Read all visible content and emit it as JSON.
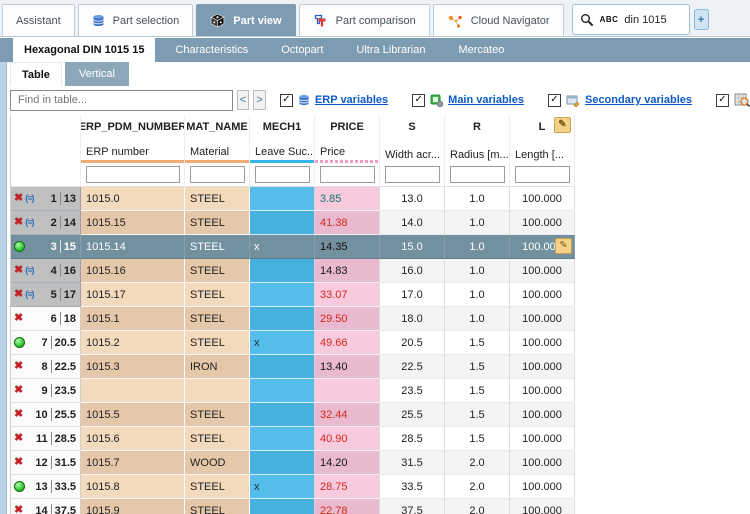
{
  "colors": {
    "accent_steel_blue": "#7d9cb2",
    "selected_row": "#73909f",
    "erp_column_tan": "#f3dabd",
    "mech_column_blue": "#54bde9",
    "price_column_pink": "#f8cade",
    "price_red": "#d9281d",
    "price_teal": "#0c756d",
    "link_blue": "#0b5ac6"
  },
  "icons": {
    "red_x": "✖",
    "request_glyph": "(≡)",
    "pencil": "✎",
    "plus": "+",
    "check": "✓",
    "prev": "<",
    "next": ">"
  },
  "top_tabs": [
    {
      "label": "Assistant",
      "active": false
    },
    {
      "label": "Part selection",
      "active": false
    },
    {
      "label": "Part view",
      "active": true
    },
    {
      "label": "Part comparison",
      "active": false
    },
    {
      "label": "Cloud Navigator",
      "active": false
    }
  ],
  "search": {
    "abc_label": "ABC",
    "query": "din 1015"
  },
  "doc_tabs": [
    {
      "label": "Hexagonal DIN 1015 15",
      "active": true
    },
    {
      "label": "Characteristics",
      "active": false
    },
    {
      "label": "Octopart",
      "active": false
    },
    {
      "label": "Ultra Librarian",
      "active": false
    },
    {
      "label": "Mercateo",
      "active": false
    }
  ],
  "view_tabs": [
    {
      "label": "Table",
      "active": true
    },
    {
      "label": "Vertical",
      "active": false
    }
  ],
  "find": {
    "placeholder": "Find in table..."
  },
  "toggles": [
    {
      "label": "ERP variables",
      "checked": true,
      "icon": "database-icon"
    },
    {
      "label": "Main variables",
      "checked": true,
      "icon": "main-variables-icon"
    },
    {
      "label": "Secondary variables",
      "checked": true,
      "icon": "secondary-variables-icon"
    },
    {
      "label": "",
      "checked": true,
      "icon": "preview-icon"
    }
  ],
  "table": {
    "columns": [
      {
        "id": "rowhdr",
        "label": "",
        "sublabel": "",
        "underline": "none"
      },
      {
        "id": "erp",
        "label": "ERP_PDM_NUMBER",
        "sublabel": "ERP number",
        "underline": "orange"
      },
      {
        "id": "mat",
        "label": "MAT_NAME",
        "sublabel": "Material",
        "underline": "orange"
      },
      {
        "id": "mech",
        "label": "MECH1",
        "sublabel": "Leave Suc...",
        "underline": "blue"
      },
      {
        "id": "price",
        "label": "PRICE",
        "sublabel": "Price",
        "underline": "pink"
      },
      {
        "id": "s",
        "label": "S",
        "sublabel": "Width acr...",
        "underline": "none"
      },
      {
        "id": "r",
        "label": "R",
        "sublabel": "Radius [m...",
        "underline": "none"
      },
      {
        "id": "l",
        "label": "L",
        "sublabel": "Length [...",
        "underline": "none",
        "editable": true
      }
    ],
    "rows": [
      {
        "num": "1",
        "key": "13",
        "state": "blocked-request",
        "erp": "1015.0",
        "mat": "STEEL",
        "mech": "",
        "price": "3.85",
        "price_style": "teal",
        "s": "13.0",
        "r": "1.0",
        "l": "100.000",
        "selected": false,
        "editable": false
      },
      {
        "num": "2",
        "key": "14",
        "state": "blocked-request",
        "erp": "1015.15",
        "mat": "STEEL",
        "mech": "",
        "price": "41.38",
        "price_style": "red",
        "s": "14.0",
        "r": "1.0",
        "l": "100.000",
        "selected": false,
        "editable": false
      },
      {
        "num": "3",
        "key": "15",
        "state": "active",
        "erp": "1015.14",
        "mat": "STEEL",
        "mech": "x",
        "price": "14.35",
        "price_style": "dark",
        "s": "15.0",
        "r": "1.0",
        "l": "100.000",
        "selected": true,
        "editable": true
      },
      {
        "num": "4",
        "key": "16",
        "state": "blocked-request",
        "erp": "1015.16",
        "mat": "STEEL",
        "mech": "",
        "price": "14.83",
        "price_style": "dark",
        "s": "16.0",
        "r": "1.0",
        "l": "100.000",
        "selected": false,
        "editable": false
      },
      {
        "num": "5",
        "key": "17",
        "state": "blocked-request",
        "erp": "1015.17",
        "mat": "STEEL",
        "mech": "",
        "price": "33.07",
        "price_style": "red",
        "s": "17.0",
        "r": "1.0",
        "l": "100.000",
        "selected": false,
        "editable": false
      },
      {
        "num": "6",
        "key": "18",
        "state": "blocked",
        "erp": "1015.1",
        "mat": "STEEL",
        "mech": "",
        "price": "29.50",
        "price_style": "red",
        "s": "18.0",
        "r": "1.0",
        "l": "100.000",
        "selected": false,
        "editable": false
      },
      {
        "num": "7",
        "key": "20.5",
        "state": "active",
        "erp": "1015.2",
        "mat": "STEEL",
        "mech": "x",
        "price": "49.66",
        "price_style": "red",
        "s": "20.5",
        "r": "1.5",
        "l": "100.000",
        "selected": false,
        "editable": false
      },
      {
        "num": "8",
        "key": "22.5",
        "state": "blocked",
        "erp": "1015.3",
        "mat": "IRON",
        "mech": "",
        "price": "13.40",
        "price_style": "dark",
        "s": "22.5",
        "r": "1.5",
        "l": "100.000",
        "selected": false,
        "editable": false
      },
      {
        "num": "9",
        "key": "23.5",
        "state": "blocked",
        "erp": "",
        "mat": "",
        "mech": "",
        "price": "",
        "price_style": "dark",
        "s": "23.5",
        "r": "1.5",
        "l": "100.000",
        "selected": false,
        "editable": false
      },
      {
        "num": "10",
        "key": "25.5",
        "state": "blocked",
        "erp": "1015.5",
        "mat": "STEEL",
        "mech": "",
        "price": "32.44",
        "price_style": "red",
        "s": "25.5",
        "r": "1.5",
        "l": "100.000",
        "selected": false,
        "editable": false
      },
      {
        "num": "11",
        "key": "28.5",
        "state": "blocked",
        "erp": "1015.6",
        "mat": "STEEL",
        "mech": "",
        "price": "40.90",
        "price_style": "red",
        "s": "28.5",
        "r": "1.5",
        "l": "100.000",
        "selected": false,
        "editable": false
      },
      {
        "num": "12",
        "key": "31.5",
        "state": "blocked",
        "erp": "1015.7",
        "mat": "WOOD",
        "mech": "",
        "price": "14.20",
        "price_style": "dark",
        "s": "31.5",
        "r": "2.0",
        "l": "100.000",
        "selected": false,
        "editable": false
      },
      {
        "num": "13",
        "key": "33.5",
        "state": "active",
        "erp": "1015.8",
        "mat": "STEEL",
        "mech": "x",
        "price": "28.75",
        "price_style": "red",
        "s": "33.5",
        "r": "2.0",
        "l": "100.000",
        "selected": false,
        "editable": false
      },
      {
        "num": "14",
        "key": "37.5",
        "state": "blocked",
        "erp": "1015.9",
        "mat": "STEEL",
        "mech": "",
        "price": "22.78",
        "price_style": "red",
        "s": "37.5",
        "r": "2.0",
        "l": "100.000",
        "selected": false,
        "editable": false
      }
    ]
  }
}
